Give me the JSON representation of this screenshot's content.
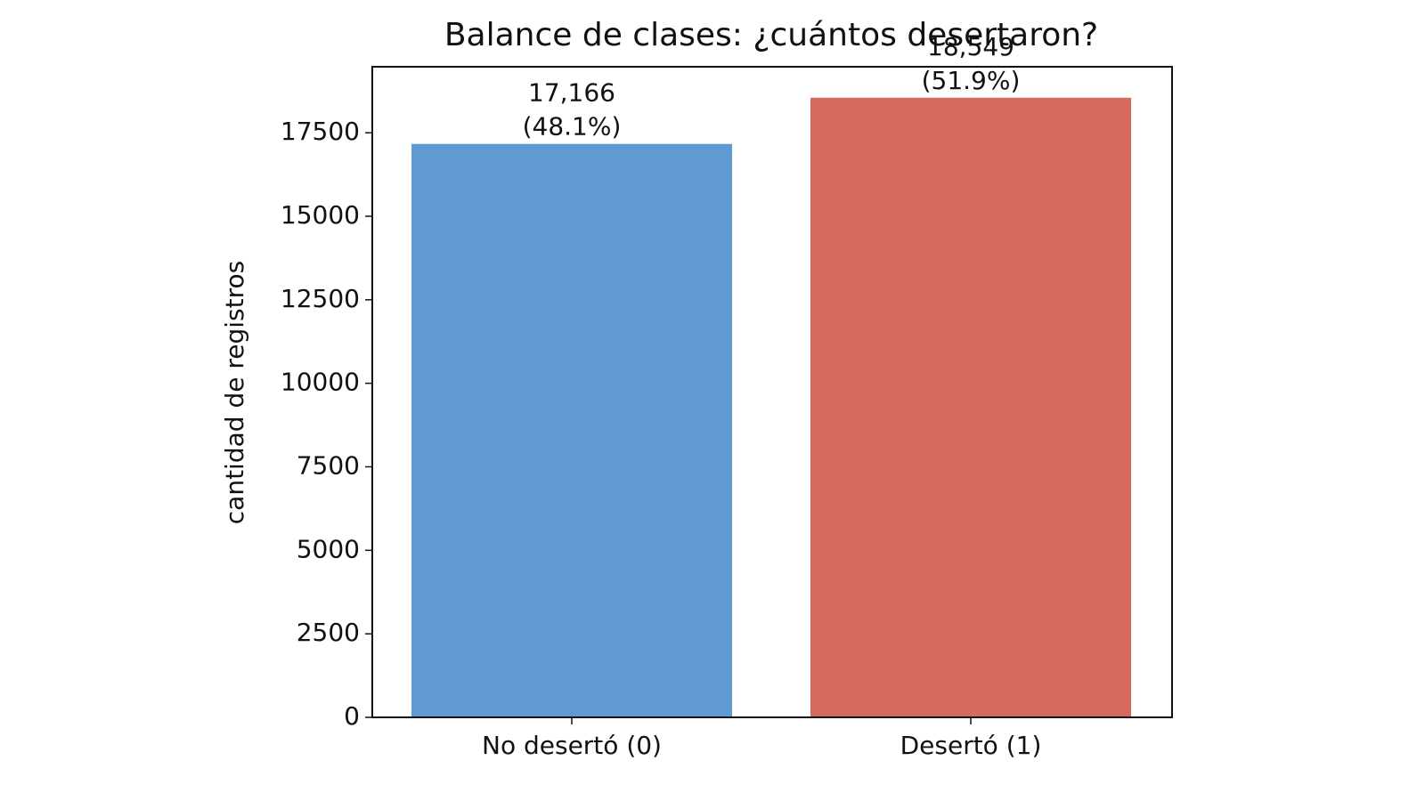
{
  "chart_data": {
    "type": "bar",
    "title": "Balance de clases: ¿cuántos desertaron?",
    "y_label": "cantidad de registros",
    "categories": [
      "No desertó (0)",
      "Desertó (1)"
    ],
    "values": [
      17166,
      18549
    ],
    "value_labels": [
      "17,166",
      "18,549"
    ],
    "percent_labels": [
      "(48.1%)",
      "(51.9%)"
    ],
    "colors": [
      "#5f9ad3",
      "#d56b5e"
    ],
    "ylim": [
      0,
      19476
    ],
    "yticks": [
      0,
      2500,
      5000,
      7500,
      10000,
      12500,
      15000,
      17500
    ],
    "grid": false
  }
}
